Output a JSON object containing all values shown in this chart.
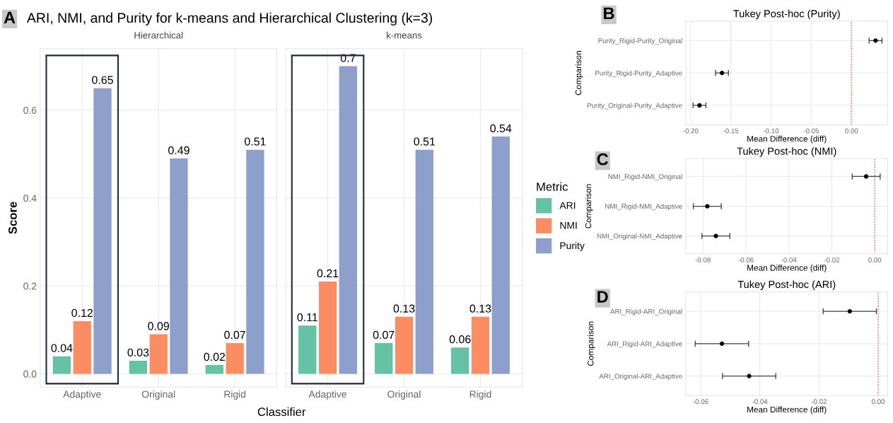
{
  "chart_data": [
    {
      "type": "bar",
      "title": "ARI, NMI, and Purity for k-means and Hierarchical Clustering (k=3)",
      "subtitle": "Hierarchical",
      "xlabel": "Classifier",
      "ylabel": "Score",
      "annotations": [
        "A"
      ],
      "categories": [
        "Adaptive",
        "Original",
        "Rigid"
      ],
      "series": [
        {
          "color": "#66c2a5",
          "values": [
            0.04,
            0.03,
            0.02
          ]
        },
        {
          "color": "#fc8d62",
          "values": [
            0.12,
            0.09,
            0.07
          ]
        },
        {
          "color": "#8da0cb",
          "values": [
            0.65,
            0.49,
            0.51
          ]
        }
      ],
      "ylim": [
        -0.03,
        0.74
      ],
      "yticks": [
        {
          "value": 0,
          "label": "0.0"
        },
        {
          "value": 0.2,
          "label": "0.2"
        },
        {
          "value": 0.4,
          "label": "0.4"
        },
        {
          "value": 0.6,
          "label": "0.6"
        }
      ],
      "data_labels": true,
      "grid": true
    },
    {
      "type": "bar",
      "subtitle": "k-means",
      "legend_title": "Metric",
      "categories": [
        "Adaptive",
        "Original",
        "Rigid"
      ],
      "series": [
        {
          "name": "ARI",
          "color": "#66c2a5",
          "values": [
            0.11,
            0.07,
            0.06
          ]
        },
        {
          "name": "NMI",
          "color": "#fc8d62",
          "values": [
            0.21,
            0.13,
            0.13
          ]
        },
        {
          "name": "Purity",
          "color": "#8da0cb",
          "values": [
            0.7,
            0.51,
            0.54
          ]
        }
      ],
      "ylim": [
        -0.03,
        0.74
      ],
      "yticks": [
        0,
        0.2,
        0.4,
        0.6
      ],
      "tick_labels": "x",
      "legend": "right",
      "data_labels": true,
      "grid": true
    },
    {
      "type": "scatter",
      "orientation": "horizontal",
      "title": "Tukey Post-hoc (Purity)",
      "xlabel": "Mean Difference (diff)",
      "ylabel": "Comparison",
      "annotations": [
        "B"
      ],
      "categories": [
        "Purity_Rigid-Purity_Original",
        "Purity_Rigid-Purity_Adaptive",
        "Purity_Original-Purity_Adaptive"
      ],
      "series": [
        {
          "color": "#000000",
          "values": [
            0.03,
            -0.161,
            -0.189
          ],
          "errors": [
            0.008,
            0.008,
            0.008
          ]
        }
      ],
      "xlim": [
        -0.206,
        0.045
      ],
      "xticks": [
        {
          "value": -0.2,
          "label": "-0.20"
        },
        {
          "value": -0.15,
          "label": "-0.15"
        },
        {
          "value": -0.1,
          "label": "-0.10"
        },
        {
          "value": -0.05,
          "label": "-0.05"
        },
        {
          "value": 0,
          "label": "0.00"
        }
      ],
      "ref_lines": [
        {
          "axis": "x",
          "value": 0,
          "color": "#e06666",
          "line_style": "dotted"
        }
      ],
      "marker": "circle",
      "grid": true
    },
    {
      "type": "scatter",
      "orientation": "horizontal",
      "title": "Tukey Post-hoc (NMI)",
      "xlabel": "Mean Difference (diff)",
      "ylabel": "Comparison",
      "annotations": [
        "C"
      ],
      "categories": [
        "NMI_Rigid-NMI_Original",
        "NMI_Rigid-NMI_Adaptive",
        "NMI_Original-NMI_Adaptive"
      ],
      "series": [
        {
          "color": "#000000",
          "values": [
            -0.004,
            -0.078,
            -0.074
          ],
          "errors": [
            0.0065,
            0.0065,
            0.0065
          ]
        }
      ],
      "xlim": [
        -0.088,
        0.006
      ],
      "xticks": [
        {
          "value": -0.08,
          "label": "-0.08"
        },
        {
          "value": -0.06,
          "label": "-0.06"
        },
        {
          "value": -0.04,
          "label": "-0.04"
        },
        {
          "value": -0.02,
          "label": "-0.02"
        },
        {
          "value": 0,
          "label": "0.00"
        }
      ],
      "ref_lines": [
        {
          "axis": "x",
          "value": 0,
          "color": "#e06666",
          "line_style": "dotted"
        }
      ],
      "marker": "circle",
      "grid": true
    },
    {
      "type": "scatter",
      "orientation": "horizontal",
      "title": "Tukey Post-hoc (ARI)",
      "xlabel": "Mean Difference (diff)",
      "ylabel": "Comparison",
      "annotations": [
        "D"
      ],
      "categories": [
        "ARI_Rigid-ARI_Original",
        "ARI_Rigid-ARI_Adaptive",
        "ARI_Original-ARI_Adaptive"
      ],
      "series": [
        {
          "color": "#000000",
          "values": [
            -0.0096,
            -0.0528,
            -0.0436
          ],
          "errors": [
            0.009,
            0.009,
            0.009
          ]
        }
      ],
      "xlim": [
        -0.065,
        0.0032
      ],
      "xticks": [
        {
          "value": -0.06,
          "label": "-0.06"
        },
        {
          "value": -0.04,
          "label": "-0.04"
        },
        {
          "value": -0.02,
          "label": "-0.02"
        },
        {
          "value": 0,
          "label": "0.00"
        }
      ],
      "ref_lines": [
        {
          "axis": "x",
          "value": 0,
          "color": "#e06666",
          "line_style": "dotted"
        }
      ],
      "marker": "circle",
      "grid": true
    }
  ]
}
